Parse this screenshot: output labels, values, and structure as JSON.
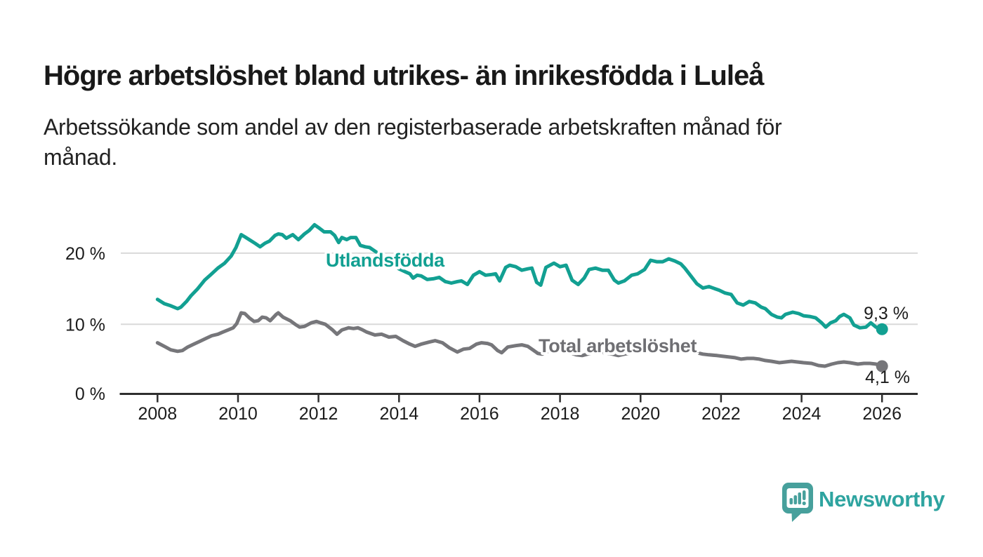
{
  "header": {
    "title": "Högre arbetslöshet bland utrikes- än inrikesfödda i Luleå",
    "subtitle_lines": [
      "Arbetssökande som andel av den registerbaserade arbetskraften månad för",
      "månad."
    ]
  },
  "chart_data": {
    "type": "line",
    "title": "Högre arbetslöshet bland utrikes- än inrikesfödda i Luleå",
    "subtitle": "Arbetssökande som andel av den registerbaserade arbetskraften månad för månad.",
    "xlabel": "",
    "ylabel": "",
    "ylim": [
      0,
      25
    ],
    "xlim": [
      2007.9,
      2026.9
    ],
    "grid": "horizontal",
    "legend_position": "inline-labels-on-lines",
    "axis_color": "#2E2E2E",
    "gridline_color": "#D9D9D9",
    "tick_label_color": "#1C1C1C",
    "y_ticks": [
      {
        "value": 20,
        "label": "20 %"
      },
      {
        "value": 10,
        "label": "10 %"
      },
      {
        "value": 0,
        "label": "0 %"
      }
    ],
    "x_ticks": [
      {
        "year": 2008,
        "label": "2008"
      },
      {
        "year": 2010,
        "label": "2010"
      },
      {
        "year": 2012,
        "label": "2012"
      },
      {
        "year": 2014,
        "label": "2014"
      },
      {
        "year": 2016,
        "label": "2016"
      },
      {
        "year": 2018,
        "label": "2018"
      },
      {
        "year": 2020,
        "label": "2020"
      },
      {
        "year": 2022,
        "label": "2022"
      },
      {
        "year": 2024,
        "label": "2024"
      },
      {
        "year": 2026,
        "label": "2026"
      }
    ],
    "series": [
      {
        "name": "Utlandsfödda",
        "color": "#12A092",
        "end_label": "9,3 %",
        "end_value": 9.3,
        "points": [
          [
            2008.0,
            13.5
          ],
          [
            2008.17,
            12.9
          ],
          [
            2008.33,
            12.6
          ],
          [
            2008.5,
            12.2
          ],
          [
            2008.58,
            12.4
          ],
          [
            2008.72,
            13.2
          ],
          [
            2008.83,
            14.0
          ],
          [
            2009.0,
            15.0
          ],
          [
            2009.17,
            16.2
          ],
          [
            2009.33,
            17.0
          ],
          [
            2009.5,
            17.9
          ],
          [
            2009.67,
            18.6
          ],
          [
            2009.83,
            19.6
          ],
          [
            2009.95,
            20.8
          ],
          [
            2010.08,
            22.6
          ],
          [
            2010.17,
            22.3
          ],
          [
            2010.28,
            21.9
          ],
          [
            2010.42,
            21.4
          ],
          [
            2010.55,
            20.9
          ],
          [
            2010.67,
            21.4
          ],
          [
            2010.78,
            21.7
          ],
          [
            2010.92,
            22.5
          ],
          [
            2011.0,
            22.7
          ],
          [
            2011.1,
            22.6
          ],
          [
            2011.2,
            22.1
          ],
          [
            2011.36,
            22.6
          ],
          [
            2011.5,
            21.9
          ],
          [
            2011.65,
            22.7
          ],
          [
            2011.77,
            23.2
          ],
          [
            2011.9,
            24.0
          ],
          [
            2012.0,
            23.6
          ],
          [
            2012.14,
            23.0
          ],
          [
            2012.3,
            23.0
          ],
          [
            2012.4,
            22.5
          ],
          [
            2012.5,
            21.5
          ],
          [
            2012.58,
            22.2
          ],
          [
            2012.7,
            21.9
          ],
          [
            2012.8,
            22.2
          ],
          [
            2012.93,
            22.2
          ],
          [
            2013.04,
            21.1
          ],
          [
            2013.16,
            20.9
          ],
          [
            2013.27,
            20.8
          ],
          [
            2013.4,
            20.3
          ],
          [
            2013.55,
            19.7
          ],
          [
            2013.7,
            19.1
          ],
          [
            2013.85,
            18.4
          ],
          [
            2014.0,
            17.8
          ],
          [
            2014.15,
            17.4
          ],
          [
            2014.27,
            17.1
          ],
          [
            2014.35,
            16.5
          ],
          [
            2014.45,
            16.9
          ],
          [
            2014.55,
            16.8
          ],
          [
            2014.7,
            16.3
          ],
          [
            2014.85,
            16.4
          ],
          [
            2015.0,
            16.6
          ],
          [
            2015.15,
            16.0
          ],
          [
            2015.3,
            15.8
          ],
          [
            2015.45,
            16.0
          ],
          [
            2015.55,
            16.1
          ],
          [
            2015.7,
            15.6
          ],
          [
            2015.85,
            16.9
          ],
          [
            2016.0,
            17.4
          ],
          [
            2016.15,
            16.9
          ],
          [
            2016.3,
            17.0
          ],
          [
            2016.4,
            17.1
          ],
          [
            2016.5,
            16.1
          ],
          [
            2016.65,
            18.0
          ],
          [
            2016.75,
            18.3
          ],
          [
            2016.9,
            18.1
          ],
          [
            2017.05,
            17.6
          ],
          [
            2017.2,
            17.8
          ],
          [
            2017.3,
            17.9
          ],
          [
            2017.42,
            15.9
          ],
          [
            2017.52,
            15.5
          ],
          [
            2017.65,
            18.0
          ],
          [
            2017.85,
            18.6
          ],
          [
            2018.0,
            18.1
          ],
          [
            2018.15,
            18.3
          ],
          [
            2018.3,
            16.2
          ],
          [
            2018.45,
            15.6
          ],
          [
            2018.6,
            16.5
          ],
          [
            2018.72,
            17.7
          ],
          [
            2018.88,
            17.9
          ],
          [
            2019.05,
            17.6
          ],
          [
            2019.2,
            17.6
          ],
          [
            2019.35,
            16.2
          ],
          [
            2019.45,
            15.8
          ],
          [
            2019.6,
            16.1
          ],
          [
            2019.78,
            16.9
          ],
          [
            2019.93,
            17.1
          ],
          [
            2020.1,
            17.7
          ],
          [
            2020.25,
            19.0
          ],
          [
            2020.4,
            18.8
          ],
          [
            2020.55,
            18.8
          ],
          [
            2020.7,
            19.2
          ],
          [
            2020.85,
            18.9
          ],
          [
            2021.0,
            18.5
          ],
          [
            2021.1,
            17.9
          ],
          [
            2021.25,
            16.8
          ],
          [
            2021.4,
            15.7
          ],
          [
            2021.55,
            15.1
          ],
          [
            2021.7,
            15.3
          ],
          [
            2021.85,
            15.0
          ],
          [
            2021.95,
            14.8
          ],
          [
            2022.1,
            14.4
          ],
          [
            2022.25,
            14.2
          ],
          [
            2022.4,
            13.0
          ],
          [
            2022.55,
            12.7
          ],
          [
            2022.7,
            13.2
          ],
          [
            2022.85,
            13.0
          ],
          [
            2023.0,
            12.4
          ],
          [
            2023.1,
            12.2
          ],
          [
            2023.25,
            11.4
          ],
          [
            2023.4,
            11.0
          ],
          [
            2023.5,
            10.9
          ],
          [
            2023.6,
            11.4
          ],
          [
            2023.78,
            11.7
          ],
          [
            2023.93,
            11.5
          ],
          [
            2024.05,
            11.2
          ],
          [
            2024.2,
            11.1
          ],
          [
            2024.35,
            10.9
          ],
          [
            2024.5,
            10.2
          ],
          [
            2024.6,
            9.6
          ],
          [
            2024.72,
            10.2
          ],
          [
            2024.85,
            10.5
          ],
          [
            2024.95,
            11.1
          ],
          [
            2025.05,
            11.4
          ],
          [
            2025.2,
            10.9
          ],
          [
            2025.3,
            9.9
          ],
          [
            2025.45,
            9.5
          ],
          [
            2025.6,
            9.6
          ],
          [
            2025.72,
            10.2
          ],
          [
            2025.85,
            9.6
          ],
          [
            2025.95,
            9.4
          ],
          [
            2026.0,
            9.3
          ]
        ]
      },
      {
        "name": "Total arbetslöshet",
        "color": "#76767A",
        "end_label": "4,1 %",
        "end_value": 4.1,
        "points": [
          [
            2008.0,
            7.4
          ],
          [
            2008.17,
            6.9
          ],
          [
            2008.33,
            6.4
          ],
          [
            2008.5,
            6.2
          ],
          [
            2008.62,
            6.3
          ],
          [
            2008.75,
            6.8
          ],
          [
            2008.9,
            7.2
          ],
          [
            2009.05,
            7.6
          ],
          [
            2009.2,
            8.0
          ],
          [
            2009.35,
            8.4
          ],
          [
            2009.5,
            8.6
          ],
          [
            2009.62,
            8.9
          ],
          [
            2009.75,
            9.2
          ],
          [
            2009.88,
            9.5
          ],
          [
            2009.97,
            10.1
          ],
          [
            2010.08,
            11.6
          ],
          [
            2010.17,
            11.5
          ],
          [
            2010.28,
            10.9
          ],
          [
            2010.4,
            10.4
          ],
          [
            2010.5,
            10.5
          ],
          [
            2010.6,
            11.0
          ],
          [
            2010.7,
            10.9
          ],
          [
            2010.8,
            10.5
          ],
          [
            2010.95,
            11.4
          ],
          [
            2011.0,
            11.6
          ],
          [
            2011.12,
            11.0
          ],
          [
            2011.3,
            10.5
          ],
          [
            2011.42,
            10.0
          ],
          [
            2011.53,
            9.6
          ],
          [
            2011.65,
            9.7
          ],
          [
            2011.82,
            10.2
          ],
          [
            2011.95,
            10.4
          ],
          [
            2012.05,
            10.2
          ],
          [
            2012.17,
            10.0
          ],
          [
            2012.35,
            9.2
          ],
          [
            2012.46,
            8.6
          ],
          [
            2012.58,
            9.2
          ],
          [
            2012.75,
            9.5
          ],
          [
            2012.87,
            9.4
          ],
          [
            2012.98,
            9.5
          ],
          [
            2013.1,
            9.2
          ],
          [
            2013.2,
            8.9
          ],
          [
            2013.4,
            8.5
          ],
          [
            2013.57,
            8.6
          ],
          [
            2013.75,
            8.2
          ],
          [
            2013.92,
            8.3
          ],
          [
            2014.1,
            7.7
          ],
          [
            2014.27,
            7.2
          ],
          [
            2014.4,
            6.9
          ],
          [
            2014.55,
            7.2
          ],
          [
            2014.75,
            7.5
          ],
          [
            2014.9,
            7.7
          ],
          [
            2015.08,
            7.4
          ],
          [
            2015.25,
            6.7
          ],
          [
            2015.45,
            6.1
          ],
          [
            2015.6,
            6.5
          ],
          [
            2015.75,
            6.6
          ],
          [
            2015.92,
            7.2
          ],
          [
            2016.05,
            7.4
          ],
          [
            2016.2,
            7.3
          ],
          [
            2016.3,
            7.1
          ],
          [
            2016.45,
            6.3
          ],
          [
            2016.55,
            6.0
          ],
          [
            2016.7,
            6.8
          ],
          [
            2016.9,
            7.0
          ],
          [
            2017.05,
            7.1
          ],
          [
            2017.2,
            6.9
          ],
          [
            2017.35,
            6.3
          ],
          [
            2017.45,
            5.9
          ],
          [
            2017.55,
            5.8
          ],
          [
            2017.7,
            6.2
          ],
          [
            2017.9,
            6.5
          ],
          [
            2018.05,
            6.4
          ],
          [
            2018.25,
            6.0
          ],
          [
            2018.4,
            5.7
          ],
          [
            2018.55,
            5.6
          ],
          [
            2018.75,
            5.9
          ],
          [
            2018.92,
            6.1
          ],
          [
            2019.1,
            6.0
          ],
          [
            2019.3,
            5.8
          ],
          [
            2019.45,
            5.6
          ],
          [
            2019.6,
            5.8
          ],
          [
            2019.8,
            6.0
          ],
          [
            2019.95,
            6.3
          ],
          [
            2020.1,
            6.7
          ],
          [
            2020.25,
            7.3
          ],
          [
            2020.4,
            7.4
          ],
          [
            2020.55,
            7.3
          ],
          [
            2020.7,
            7.2
          ],
          [
            2020.9,
            7.0
          ],
          [
            2021.05,
            6.8
          ],
          [
            2021.2,
            6.4
          ],
          [
            2021.4,
            6.0
          ],
          [
            2021.55,
            5.8
          ],
          [
            2021.7,
            5.7
          ],
          [
            2021.9,
            5.6
          ],
          [
            2022.05,
            5.5
          ],
          [
            2022.2,
            5.4
          ],
          [
            2022.35,
            5.3
          ],
          [
            2022.5,
            5.1
          ],
          [
            2022.65,
            5.2
          ],
          [
            2022.8,
            5.2
          ],
          [
            2022.95,
            5.1
          ],
          [
            2023.1,
            4.9
          ],
          [
            2023.25,
            4.8
          ],
          [
            2023.45,
            4.6
          ],
          [
            2023.6,
            4.7
          ],
          [
            2023.75,
            4.8
          ],
          [
            2023.9,
            4.7
          ],
          [
            2024.05,
            4.6
          ],
          [
            2024.25,
            4.5
          ],
          [
            2024.42,
            4.2
          ],
          [
            2024.58,
            4.1
          ],
          [
            2024.75,
            4.4
          ],
          [
            2024.9,
            4.6
          ],
          [
            2025.05,
            4.7
          ],
          [
            2025.2,
            4.6
          ],
          [
            2025.4,
            4.4
          ],
          [
            2025.55,
            4.5
          ],
          [
            2025.7,
            4.5
          ],
          [
            2025.85,
            4.4
          ],
          [
            2026.0,
            4.1
          ]
        ]
      }
    ]
  },
  "footer": {
    "brand": "Newsworthy",
    "brand_color": "#2EA4A0",
    "icon_color": "#47A09C"
  }
}
